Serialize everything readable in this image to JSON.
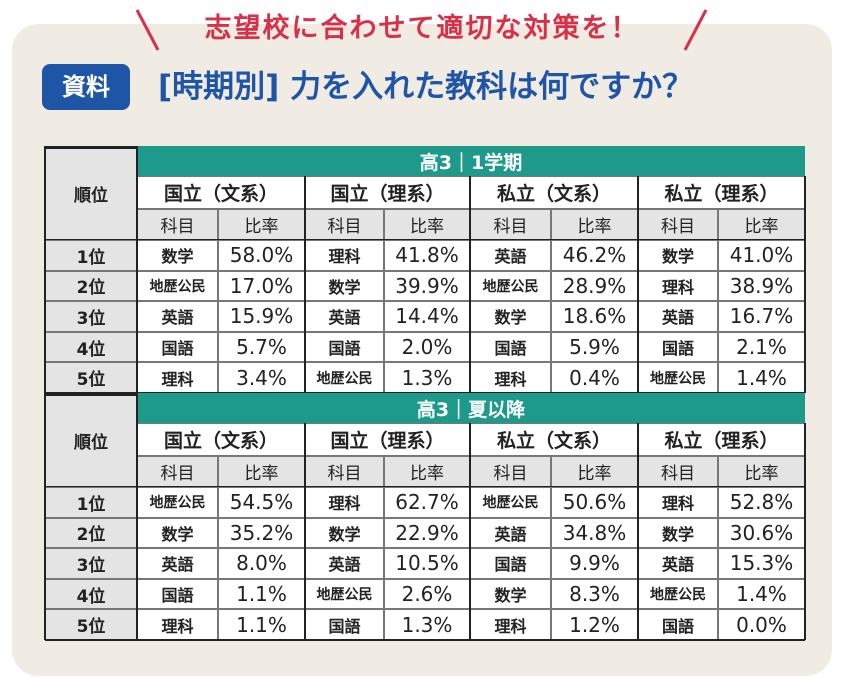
{
  "header": {
    "banner": "志望校に合わせて適切な対策を！",
    "badge": "資料",
    "title": "[時期別] 力を入れた教科は何ですか？"
  },
  "table": {
    "sections": [
      {
        "period": "高3｜1学期",
        "rank_header": "順位",
        "groups": [
          "国立（文系）",
          "国立（理系）",
          "私立（文系）",
          "私立（理系）"
        ],
        "subheaders": [
          [
            "科目",
            "比率"
          ],
          [
            "科目",
            "比率"
          ],
          [
            "科目",
            "比率"
          ],
          [
            "科目",
            "比率"
          ]
        ],
        "rows": [
          {
            "rank": "1位",
            "cells": [
              [
                "数学",
                "58.0%"
              ],
              [
                "理科",
                "41.8%"
              ],
              [
                "英語",
                "46.2%"
              ],
              [
                "数学",
                "41.0%"
              ]
            ]
          },
          {
            "rank": "2位",
            "cells": [
              [
                "地歴公民",
                "17.0%"
              ],
              [
                "数学",
                "39.9%"
              ],
              [
                "地歴公民",
                "28.9%"
              ],
              [
                "理科",
                "38.9%"
              ]
            ]
          },
          {
            "rank": "3位",
            "cells": [
              [
                "英語",
                "15.9%"
              ],
              [
                "英語",
                "14.4%"
              ],
              [
                "数学",
                "18.6%"
              ],
              [
                "英語",
                "16.7%"
              ]
            ]
          },
          {
            "rank": "4位",
            "cells": [
              [
                "国語",
                "5.7%"
              ],
              [
                "国語",
                "2.0%"
              ],
              [
                "国語",
                "5.9%"
              ],
              [
                "国語",
                "2.1%"
              ]
            ]
          },
          {
            "rank": "5位",
            "cells": [
              [
                "理科",
                "3.4%"
              ],
              [
                "地歴公民",
                "1.3%"
              ],
              [
                "理科",
                "0.4%"
              ],
              [
                "地歴公民",
                "1.4%"
              ]
            ]
          }
        ]
      },
      {
        "period": "高3｜夏以降",
        "rank_header": "順位",
        "groups": [
          "国立（文系）",
          "国立（理系）",
          "私立（文系）",
          "私立（理系）"
        ],
        "subheaders": [
          [
            "科目",
            "比率"
          ],
          [
            "科目",
            "比率"
          ],
          [
            "科目",
            "比率"
          ],
          [
            "科目",
            "比率"
          ]
        ],
        "rows": [
          {
            "rank": "1位",
            "cells": [
              [
                "地歴公民",
                "54.5%"
              ],
              [
                "理科",
                "62.7%"
              ],
              [
                "地歴公民",
                "50.6%"
              ],
              [
                "理科",
                "52.8%"
              ]
            ]
          },
          {
            "rank": "2位",
            "cells": [
              [
                "数学",
                "35.2%"
              ],
              [
                "数学",
                "22.9%"
              ],
              [
                "英語",
                "34.8%"
              ],
              [
                "数学",
                "30.6%"
              ]
            ]
          },
          {
            "rank": "3位",
            "cells": [
              [
                "英語",
                "8.0%"
              ],
              [
                "英語",
                "10.5%"
              ],
              [
                "国語",
                "9.9%"
              ],
              [
                "英語",
                "15.3%"
              ]
            ]
          },
          {
            "rank": "4位",
            "cells": [
              [
                "国語",
                "1.1%"
              ],
              [
                "地歴公民",
                "2.6%"
              ],
              [
                "数学",
                "8.3%"
              ],
              [
                "地歴公民",
                "1.4%"
              ]
            ]
          },
          {
            "rank": "5位",
            "cells": [
              [
                "理科",
                "1.1%"
              ],
              [
                "国語",
                "1.3%"
              ],
              [
                "理科",
                "1.2%"
              ],
              [
                "国語",
                "0.0%"
              ]
            ]
          }
        ]
      }
    ]
  }
}
